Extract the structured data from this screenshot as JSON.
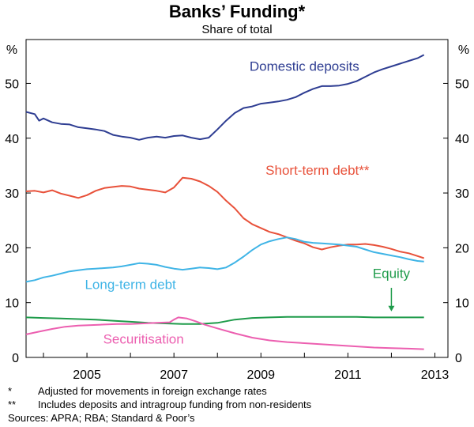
{
  "title": "Banks’ Funding*",
  "subtitle": "Share of total",
  "notes": [
    {
      "mark": "*",
      "text": "Adjusted for movements in foreign exchange rates"
    },
    {
      "mark": "**",
      "text": "Includes deposits and intragroup funding from non-residents"
    }
  ],
  "sources": "Sources: APRA; RBA; Standard & Poor’s",
  "chart_data": {
    "type": "line",
    "y_unit_label": "%",
    "ylim": [
      0,
      58
    ],
    "xlim": [
      2003.6,
      2013.3
    ],
    "y_ticks": [
      0,
      10,
      20,
      30,
      40,
      50
    ],
    "x_ticks": [
      2005,
      2007,
      2009,
      2011,
      2013
    ],
    "grid": false,
    "series": [
      {
        "name": "Domestic deposits",
        "color": "#2E3D92",
        "points": [
          [
            2003.6,
            44.8
          ],
          [
            2003.8,
            44.4
          ],
          [
            2003.9,
            43.2
          ],
          [
            2004.0,
            43.6
          ],
          [
            2004.2,
            42.9
          ],
          [
            2004.4,
            42.6
          ],
          [
            2004.6,
            42.5
          ],
          [
            2004.8,
            42.0
          ],
          [
            2005.0,
            41.8
          ],
          [
            2005.2,
            41.6
          ],
          [
            2005.4,
            41.3
          ],
          [
            2005.6,
            40.6
          ],
          [
            2005.8,
            40.3
          ],
          [
            2006.0,
            40.1
          ],
          [
            2006.2,
            39.7
          ],
          [
            2006.4,
            40.1
          ],
          [
            2006.6,
            40.3
          ],
          [
            2006.8,
            40.1
          ],
          [
            2007.0,
            40.4
          ],
          [
            2007.2,
            40.5
          ],
          [
            2007.4,
            40.1
          ],
          [
            2007.6,
            39.8
          ],
          [
            2007.8,
            40.1
          ],
          [
            2008.0,
            41.6
          ],
          [
            2008.2,
            43.2
          ],
          [
            2008.4,
            44.6
          ],
          [
            2008.6,
            45.5
          ],
          [
            2008.8,
            45.8
          ],
          [
            2009.0,
            46.3
          ],
          [
            2009.2,
            46.5
          ],
          [
            2009.4,
            46.7
          ],
          [
            2009.6,
            47.0
          ],
          [
            2009.8,
            47.5
          ],
          [
            2010.0,
            48.3
          ],
          [
            2010.2,
            49.0
          ],
          [
            2010.4,
            49.5
          ],
          [
            2010.6,
            49.5
          ],
          [
            2010.8,
            49.6
          ],
          [
            2011.0,
            49.9
          ],
          [
            2011.2,
            50.4
          ],
          [
            2011.4,
            51.2
          ],
          [
            2011.6,
            52.0
          ],
          [
            2011.8,
            52.6
          ],
          [
            2012.0,
            53.1
          ],
          [
            2012.2,
            53.6
          ],
          [
            2012.4,
            54.1
          ],
          [
            2012.6,
            54.6
          ],
          [
            2012.75,
            55.2
          ]
        ]
      },
      {
        "name": "Short-term debt**",
        "color": "#E8513A",
        "points": [
          [
            2003.6,
            30.3
          ],
          [
            2003.8,
            30.4
          ],
          [
            2004.0,
            30.1
          ],
          [
            2004.2,
            30.5
          ],
          [
            2004.4,
            29.9
          ],
          [
            2004.6,
            29.5
          ],
          [
            2004.8,
            29.1
          ],
          [
            2005.0,
            29.6
          ],
          [
            2005.2,
            30.4
          ],
          [
            2005.4,
            30.9
          ],
          [
            2005.6,
            31.1
          ],
          [
            2005.8,
            31.3
          ],
          [
            2006.0,
            31.2
          ],
          [
            2006.2,
            30.8
          ],
          [
            2006.4,
            30.6
          ],
          [
            2006.6,
            30.4
          ],
          [
            2006.8,
            30.1
          ],
          [
            2007.0,
            31.0
          ],
          [
            2007.2,
            32.8
          ],
          [
            2007.4,
            32.6
          ],
          [
            2007.6,
            32.1
          ],
          [
            2007.8,
            31.3
          ],
          [
            2008.0,
            30.2
          ],
          [
            2008.2,
            28.6
          ],
          [
            2008.4,
            27.2
          ],
          [
            2008.6,
            25.4
          ],
          [
            2008.8,
            24.3
          ],
          [
            2009.0,
            23.6
          ],
          [
            2009.2,
            22.9
          ],
          [
            2009.4,
            22.5
          ],
          [
            2009.6,
            21.9
          ],
          [
            2009.8,
            21.3
          ],
          [
            2010.0,
            20.8
          ],
          [
            2010.2,
            20.1
          ],
          [
            2010.4,
            19.7
          ],
          [
            2010.6,
            20.1
          ],
          [
            2010.8,
            20.4
          ],
          [
            2011.0,
            20.6
          ],
          [
            2011.2,
            20.6
          ],
          [
            2011.4,
            20.7
          ],
          [
            2011.6,
            20.5
          ],
          [
            2011.8,
            20.2
          ],
          [
            2012.0,
            19.8
          ],
          [
            2012.2,
            19.3
          ],
          [
            2012.4,
            19.0
          ],
          [
            2012.6,
            18.5
          ],
          [
            2012.75,
            18.1
          ]
        ]
      },
      {
        "name": "Long-term debt",
        "color": "#3FB4E6",
        "points": [
          [
            2003.6,
            13.8
          ],
          [
            2003.8,
            14.1
          ],
          [
            2004.0,
            14.6
          ],
          [
            2004.2,
            14.9
          ],
          [
            2004.4,
            15.3
          ],
          [
            2004.6,
            15.7
          ],
          [
            2004.8,
            15.9
          ],
          [
            2005.0,
            16.1
          ],
          [
            2005.2,
            16.2
          ],
          [
            2005.4,
            16.3
          ],
          [
            2005.6,
            16.4
          ],
          [
            2005.8,
            16.6
          ],
          [
            2006.0,
            16.9
          ],
          [
            2006.2,
            17.2
          ],
          [
            2006.4,
            17.1
          ],
          [
            2006.6,
            16.9
          ],
          [
            2006.8,
            16.5
          ],
          [
            2007.0,
            16.2
          ],
          [
            2007.2,
            16.0
          ],
          [
            2007.4,
            16.2
          ],
          [
            2007.6,
            16.4
          ],
          [
            2007.8,
            16.3
          ],
          [
            2008.0,
            16.1
          ],
          [
            2008.2,
            16.4
          ],
          [
            2008.4,
            17.3
          ],
          [
            2008.6,
            18.4
          ],
          [
            2008.8,
            19.6
          ],
          [
            2009.0,
            20.6
          ],
          [
            2009.2,
            21.2
          ],
          [
            2009.4,
            21.6
          ],
          [
            2009.6,
            21.9
          ],
          [
            2009.8,
            21.6
          ],
          [
            2010.0,
            21.1
          ],
          [
            2010.2,
            20.9
          ],
          [
            2010.4,
            20.8
          ],
          [
            2010.6,
            20.7
          ],
          [
            2010.8,
            20.6
          ],
          [
            2011.0,
            20.4
          ],
          [
            2011.2,
            20.2
          ],
          [
            2011.4,
            19.7
          ],
          [
            2011.6,
            19.2
          ],
          [
            2011.8,
            18.9
          ],
          [
            2012.0,
            18.6
          ],
          [
            2012.2,
            18.3
          ],
          [
            2012.4,
            17.9
          ],
          [
            2012.6,
            17.6
          ],
          [
            2012.75,
            17.5
          ]
        ]
      },
      {
        "name": "Equity",
        "color": "#1E9B4A",
        "points": [
          [
            2003.6,
            7.3
          ],
          [
            2004.0,
            7.2
          ],
          [
            2004.4,
            7.1
          ],
          [
            2004.8,
            7.0
          ],
          [
            2005.2,
            6.9
          ],
          [
            2005.6,
            6.7
          ],
          [
            2006.0,
            6.5
          ],
          [
            2006.4,
            6.3
          ],
          [
            2006.8,
            6.2
          ],
          [
            2007.2,
            6.1
          ],
          [
            2007.6,
            6.1
          ],
          [
            2008.0,
            6.3
          ],
          [
            2008.4,
            6.9
          ],
          [
            2008.8,
            7.2
          ],
          [
            2009.2,
            7.3
          ],
          [
            2009.6,
            7.4
          ],
          [
            2010.0,
            7.4
          ],
          [
            2010.4,
            7.4
          ],
          [
            2010.8,
            7.4
          ],
          [
            2011.2,
            7.4
          ],
          [
            2011.6,
            7.3
          ],
          [
            2012.0,
            7.3
          ],
          [
            2012.4,
            7.3
          ],
          [
            2012.75,
            7.3
          ]
        ]
      },
      {
        "name": "Securitisation",
        "color": "#EC5FB0",
        "points": [
          [
            2003.6,
            4.2
          ],
          [
            2003.9,
            4.7
          ],
          [
            2004.2,
            5.2
          ],
          [
            2004.5,
            5.6
          ],
          [
            2004.8,
            5.8
          ],
          [
            2005.1,
            5.9
          ],
          [
            2005.4,
            6.0
          ],
          [
            2005.7,
            6.1
          ],
          [
            2006.0,
            6.1
          ],
          [
            2006.3,
            6.2
          ],
          [
            2006.6,
            6.3
          ],
          [
            2006.9,
            6.4
          ],
          [
            2007.0,
            6.9
          ],
          [
            2007.1,
            7.3
          ],
          [
            2007.3,
            7.1
          ],
          [
            2007.5,
            6.6
          ],
          [
            2007.7,
            6.0
          ],
          [
            2008.0,
            5.3
          ],
          [
            2008.4,
            4.4
          ],
          [
            2008.8,
            3.6
          ],
          [
            2009.2,
            3.1
          ],
          [
            2009.6,
            2.8
          ],
          [
            2010.0,
            2.6
          ],
          [
            2010.4,
            2.4
          ],
          [
            2010.8,
            2.2
          ],
          [
            2011.2,
            2.0
          ],
          [
            2011.6,
            1.8
          ],
          [
            2012.0,
            1.7
          ],
          [
            2012.4,
            1.6
          ],
          [
            2012.75,
            1.5
          ]
        ]
      }
    ],
    "series_labels": [
      {
        "series": 0,
        "text": "Domestic deposits",
        "x": 2010.0,
        "y": 52.3,
        "anchor": "middle"
      },
      {
        "series": 1,
        "text": "Short-term debt**",
        "x": 2010.3,
        "y": 33.3,
        "anchor": "middle"
      },
      {
        "series": 2,
        "text": "Long-term debt",
        "x": 2006.0,
        "y": 12.5,
        "anchor": "middle"
      },
      {
        "series": 3,
        "text": "Equity",
        "x": 2012.0,
        "y": 14.5,
        "anchor": "middle"
      },
      {
        "series": 4,
        "text": "Securitisation",
        "x": 2006.3,
        "y": 2.5,
        "anchor": "middle"
      }
    ],
    "equity_arrow": {
      "x": 2012.0,
      "y_from": 12.7,
      "y_to": 8.4
    }
  }
}
